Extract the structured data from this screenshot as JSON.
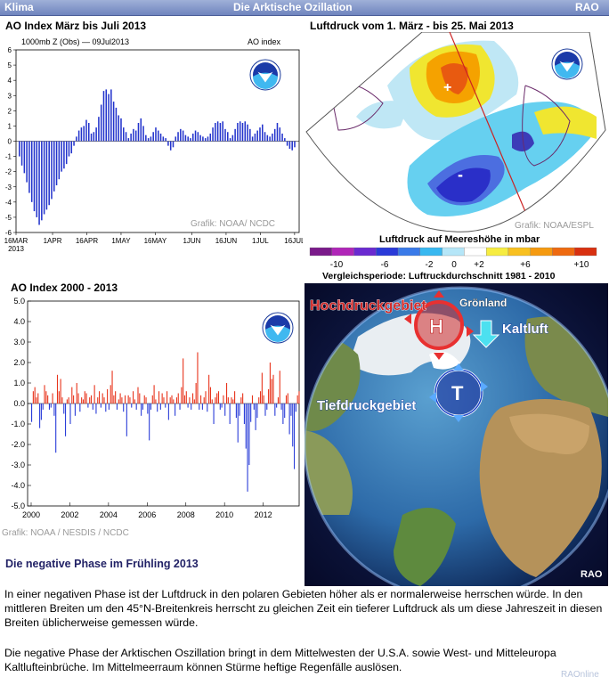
{
  "header": {
    "left": "Klima",
    "center": "Die Arktische Ozillation",
    "right": "RAO"
  },
  "colors": {
    "header": "#7f92c6",
    "positive": "#e8341c",
    "negative": "#2a3dd8",
    "bar_blue": "#2233cc"
  },
  "chart_data": [
    {
      "type": "bar",
      "title": "AO Index März bis Juli 2013",
      "subtitle": "1000mb Z (Obs) — 09Jul2013",
      "legend_text": "AO index",
      "ylim": [
        -6,
        6
      ],
      "yticks": [
        "6",
        "5",
        "4",
        "3",
        "2",
        "1",
        "0",
        "-1",
        "-2",
        "-3",
        "-4",
        "-5",
        "-6"
      ],
      "xticks": [
        "16MAR\n2013",
        "1APR",
        "16APR",
        "1MAY",
        "16MAY",
        "1JUN",
        "16JUN",
        "1JUL",
        "16JUL"
      ],
      "x_start": "2013-03-16",
      "values": [
        -1.0,
        -1.6,
        -2.1,
        -2.7,
        -3.4,
        -4.0,
        -4.6,
        -5.0,
        -5.5,
        -5.2,
        -4.8,
        -4.5,
        -4.2,
        -3.8,
        -3.3,
        -2.9,
        -2.5,
        -2.0,
        -1.8,
        -1.5,
        -1.0,
        -0.8,
        -0.3,
        0.3,
        0.7,
        0.9,
        1.0,
        1.4,
        1.2,
        0.5,
        0.6,
        0.9,
        1.6,
        2.4,
        3.3,
        3.4,
        3.1,
        3.4,
        2.6,
        2.2,
        1.7,
        1.5,
        0.9,
        0.6,
        0.2,
        0.5,
        0.8,
        0.7,
        1.2,
        1.5,
        1.0,
        0.4,
        0.2,
        0.3,
        0.6,
        0.9,
        0.7,
        0.5,
        0.3,
        0.2,
        -0.3,
        -0.6,
        -0.4,
        0.3,
        0.6,
        0.8,
        0.7,
        0.4,
        0.3,
        0.2,
        0.5,
        0.7,
        0.6,
        0.4,
        0.3,
        0.2,
        0.3,
        0.5,
        0.9,
        1.2,
        1.3,
        1.2,
        1.3,
        0.8,
        0.6,
        0.2,
        0.4,
        0.8,
        1.2,
        1.3,
        1.2,
        1.3,
        1.1,
        0.8,
        0.3,
        0.5,
        0.7,
        0.9,
        1.1,
        0.6,
        0.4,
        0.3,
        0.5,
        0.8,
        1.2,
        0.9,
        0.5,
        0.2,
        -0.3,
        -0.5,
        -0.6,
        -0.4
      ],
      "credit": "Grafik: NOAA/ NCDC"
    },
    {
      "type": "bar",
      "title": "AO Index 2000 - 2013",
      "ylim": [
        -5,
        5
      ],
      "yticks": [
        "5.0",
        "4.0",
        "3.0",
        "2.0",
        "1.0",
        "0.0",
        "-1.0",
        "-2.0",
        "-3.0",
        "-4.0",
        "-5.0"
      ],
      "xticks": [
        "2000",
        "2002",
        "2004",
        "2006",
        "2008",
        "2010",
        "2012"
      ],
      "x_start": 2000,
      "values": [
        -0.9,
        0.6,
        0.8,
        0.3,
        0.5,
        -1.2,
        -0.8,
        -0.3,
        0.9,
        0.6,
        0.4,
        -0.3,
        -0.2,
        0.5,
        -0.6,
        -2.4,
        1.4,
        0.6,
        1.2,
        0.3,
        -0.5,
        -1.6,
        0.2,
        0.3,
        -1.0,
        0.8,
        0.4,
        -0.6,
        1.0,
        0.5,
        -0.4,
        0.3,
        0.2,
        0.6,
        0.5,
        -0.2,
        0.3,
        0.4,
        -0.3,
        0.9,
        -0.5,
        0.3,
        0.6,
        -0.2,
        0.5,
        0.3,
        -0.4,
        0.7,
        -0.3,
        0.9,
        1.6,
        0.4,
        0.6,
        -0.3,
        0.2,
        0.5,
        0.3,
        -0.4,
        0.4,
        -1.6,
        0.4,
        0.3,
        -0.2,
        0.6,
        0.2,
        -0.3,
        0.8,
        0.5,
        -0.6,
        -0.3,
        0.4,
        0.3,
        -0.5,
        -1.8,
        -0.3,
        0.4,
        0.9,
        0.2,
        -0.4,
        0.6,
        -0.3,
        0.5,
        0.3,
        -0.2,
        0.6,
        -0.8,
        0.3,
        0.4,
        0.2,
        -0.6,
        0.3,
        0.5,
        -0.3,
        0.8,
        2.2,
        0.4,
        0.6,
        -0.2,
        0.3,
        -0.3,
        0.5,
        0.2,
        1.0,
        2.5,
        -0.3,
        0.4,
        -0.3,
        0.3,
        0.6,
        -0.4,
        1.4,
        0.8,
        0.2,
        -1.0,
        0.3,
        0.5,
        0.6,
        -0.3,
        -0.2,
        0.4,
        -0.6,
        1.0,
        0.3,
        -1.0,
        0.3,
        0.2,
        0.6,
        -0.7,
        -1.9,
        -0.6,
        0.3,
        0.5,
        -1.0,
        -2.2,
        -4.3,
        -3.0,
        -0.9,
        0.4,
        -0.3,
        -1.3,
        -0.7,
        0.3,
        0.6,
        1.5,
        0.4,
        -0.6,
        -0.3,
        0.7,
        2.0,
        1.2,
        1.4,
        -0.6,
        -0.2,
        0.3,
        1.6,
        -0.3,
        -1.0,
        -0.7,
        0.4,
        0.5,
        -1.5,
        -0.6,
        -2.1,
        -3.2,
        -0.4,
        0.4,
        0.6
      ],
      "credit": "Grafik: NOAA / NESDIS / NCDC"
    }
  ],
  "map1": {
    "title": "Luftdruck vom 1. März - bis 25. Mai 2013",
    "credit": "Grafik: NOAA/ESPL",
    "plus": "+",
    "minus": "-",
    "legend_title": "Luftdruck auf Meereshöhe in mbar",
    "legend_labels": [
      "-10",
      "-6",
      "-2",
      "0",
      "+2",
      "+6",
      "+10"
    ],
    "legend_footer": "Vergleichsperiode: Luftruckdurchschnitt 1981 - 2010"
  },
  "globe": {
    "high_label": "Hochdruckgebiet",
    "greenland_label": "Grönland",
    "cold_label": "Kaltluft",
    "low_label": "Tiefdruckgebiet",
    "high_letter": "H",
    "low_letter": "T",
    "brand": "RAO"
  },
  "section_title": "Die negative Phase im Frühling 2013",
  "paragraph1": "In einer negativen Phase ist der Luftdruck in den polaren Gebieten höher als er normalerweise herrschen würde. In den mittleren Breiten um den 45°N-Breitenkreis herrscht zu gleichen Zeit ein tieferer Luftdruck als um diese Jahreszeit in diesen Breiten üblicherweise gemessen würde.",
  "paragraph2": "Die negative Phase der Arktischen Oszillation bringt in dem Mittelwesten der  U.S.A. sowie West- und Mitteleuropa Kaltlufteinbrüche. Im Mittelmeerraum können Stürme heftige Regenfälle auslösen.",
  "footer": "RAOnline"
}
